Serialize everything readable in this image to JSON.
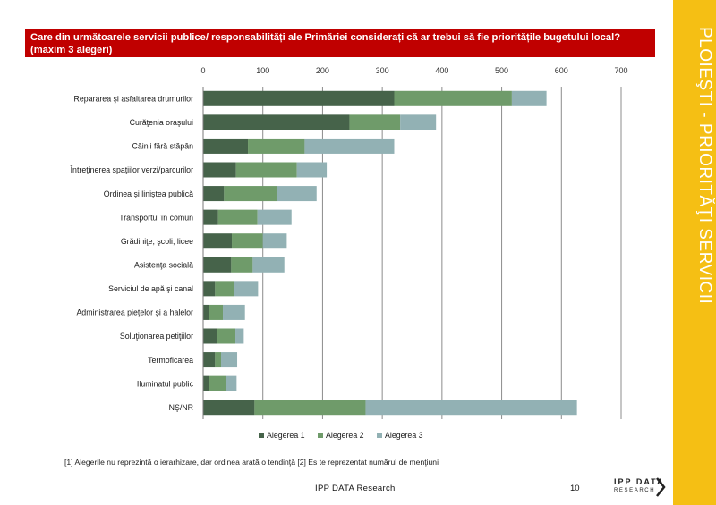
{
  "question": "Care din următoarele servicii publice/ responsabilități ale Primăriei considerați că ar trebui să fie prioritățile bugetului local? (maxim 3 alegeri)",
  "side_title": "PLOIEŞTI - PRIORITĂŢI SERVICII",
  "footnote": "[1] Alegerile nu reprezintă o ierarhizare, dar ordinea arată o tendinţă [2] Es te reprezentat numărul de menţiuni",
  "footer_brand": "IPP DATA Research",
  "page_number": "10",
  "logo": {
    "line1": "IPP DATA",
    "line2": "RESEARCH"
  },
  "colors": {
    "banner": "#c00000",
    "side_band": "#f5bf14"
  },
  "chart_data": {
    "type": "bar",
    "orientation": "horizontal",
    "stacked": true,
    "categories": [
      "Repararea şi asfaltarea drumurilor",
      "Curăţenia oraşului",
      "Câinii fără stăpân",
      "Întreţinerea spaţiilor verzi/parcurilor",
      "Ordinea şi liniştea publică",
      "Transportul în comun",
      "Grădiniţe, şcoli, licee",
      "Asistenţa socială",
      "Serviciul de apă şi canal",
      "Administrarea pieţelor şi a halelor",
      "Soluţionarea petiţiilor",
      "Termoficarea",
      "Iluminatul public",
      "NŞ/NR"
    ],
    "series": [
      {
        "name": "Alegerea 1",
        "color": "#46634a",
        "values": [
          320,
          245,
          75,
          55,
          35,
          25,
          48,
          47,
          20,
          10,
          24,
          20,
          10,
          86
        ]
      },
      {
        "name": "Alegerea 2",
        "color": "#6f9b6a",
        "values": [
          197,
          85,
          95,
          102,
          88,
          66,
          52,
          36,
          32,
          23,
          30,
          10,
          28,
          186
        ]
      },
      {
        "name": "Alegerea 3",
        "color": "#92b1b4",
        "values": [
          58,
          60,
          150,
          50,
          67,
          57,
          40,
          53,
          40,
          37,
          14,
          27,
          18,
          354
        ]
      }
    ],
    "xlim": [
      0,
      700
    ],
    "xticks": [
      0,
      100,
      200,
      300,
      400,
      500,
      600,
      700
    ],
    "grid": true,
    "legend_position": "bottom"
  }
}
